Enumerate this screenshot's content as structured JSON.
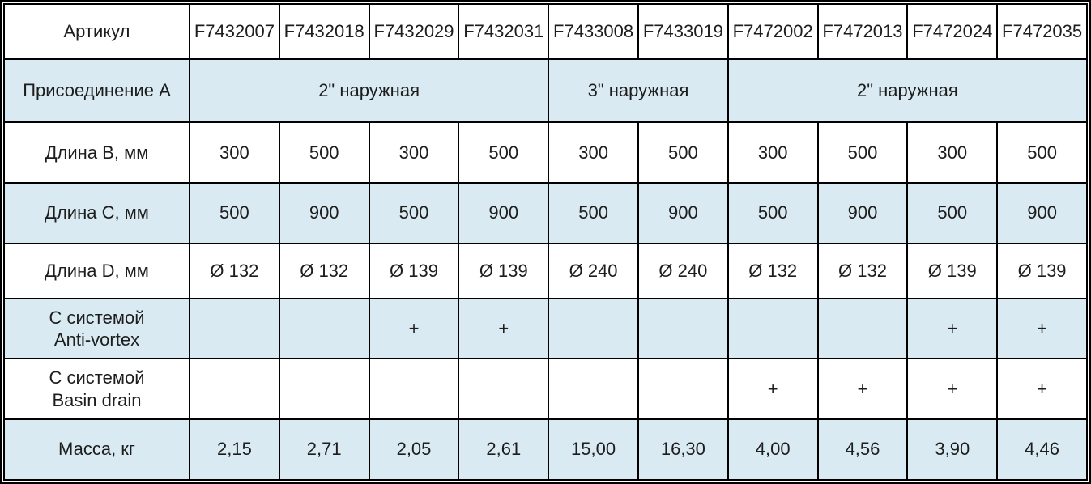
{
  "table": {
    "header": {
      "label": "Артикул",
      "articles": [
        "F7432007",
        "F7432018",
        "F7432029",
        "F7432031",
        "F7433008",
        "F7433019",
        "F7472002",
        "F7472013",
        "F7472024",
        "F7472035"
      ]
    },
    "connection": {
      "label": "Присоединение А",
      "groups": [
        {
          "text": "2\" наружная",
          "span": 4
        },
        {
          "text": "3\" наружная",
          "span": 2
        },
        {
          "text": "2\" наружная",
          "span": 4
        }
      ]
    },
    "rows": [
      {
        "label": "Длина B, мм",
        "values": [
          "300",
          "500",
          "300",
          "500",
          "300",
          "500",
          "300",
          "500",
          "300",
          "500"
        ]
      },
      {
        "label": "Длина C, мм",
        "values": [
          "500",
          "900",
          "500",
          "900",
          "500",
          "900",
          "500",
          "900",
          "500",
          "900"
        ]
      },
      {
        "label": "Длина D, мм",
        "values": [
          "Ø 132",
          "Ø 132",
          "Ø 139",
          "Ø 139",
          "Ø 240",
          "Ø 240",
          "Ø 132",
          "Ø 132",
          "Ø 139",
          "Ø 139"
        ]
      },
      {
        "label": "С системой",
        "label2": "Anti-vortex",
        "values": [
          "",
          "",
          "+",
          "+",
          "",
          "",
          "",
          "",
          "+",
          "+"
        ]
      },
      {
        "label": "С системой",
        "label2": "Basin drain",
        "values": [
          "",
          "",
          "",
          "",
          "",
          "",
          "+",
          "+",
          "+",
          "+"
        ]
      },
      {
        "label": "Масса, кг",
        "values": [
          "2,15",
          "2,71",
          "2,05",
          "2,61",
          "15,00",
          "16,30",
          "4,00",
          "4,56",
          "3,90",
          "4,46"
        ]
      }
    ],
    "colors": {
      "row_highlight": "#d9eaf2",
      "border": "#000000",
      "background": "#ffffff",
      "text": "#1d1d1d"
    }
  }
}
